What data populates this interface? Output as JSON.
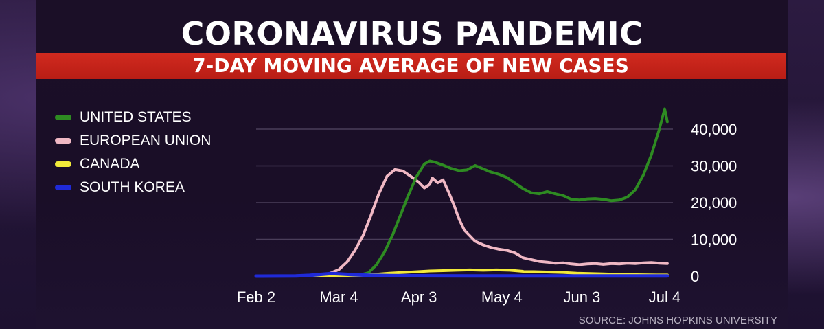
{
  "header": {
    "title": "CORONAVIRUS PANDEMIC",
    "subtitle": "7-DAY MOVING AVERAGE OF NEW CASES"
  },
  "source": "SOURCE: JOHNS HOPKINS UNIVERSITY",
  "colors": {
    "united_states": "#2e8b22",
    "european_union": "#f0b8c4",
    "canada": "#f2ea3a",
    "south_korea": "#1f2ad8",
    "gridline": "#4a3e5a",
    "title_bar": "#c8231a"
  },
  "chart_data": {
    "type": "line",
    "title": "CORONAVIRUS PANDEMIC",
    "subtitle": "7-DAY MOVING AVERAGE OF NEW CASES",
    "xlabel": "",
    "ylabel": "",
    "x_ticks": [
      "Feb 2",
      "Mar 4",
      "Apr 3",
      "May 4",
      "Jun 3",
      "Jul 4"
    ],
    "x_tick_days": [
      0,
      31,
      61,
      92,
      122,
      153
    ],
    "y_ticks": [
      "0",
      "10,000",
      "20,000",
      "30,000",
      "40,000"
    ],
    "ylim": [
      0,
      40000
    ],
    "xlim": [
      0,
      153
    ],
    "grid": true,
    "legend_position": "top-left",
    "y_axis_side": "right",
    "series": [
      {
        "name": "UNITED STATES",
        "color_key": "united_states",
        "points": [
          [
            0,
            0
          ],
          [
            30,
            50
          ],
          [
            38,
            200
          ],
          [
            42,
            900
          ],
          [
            45,
            3000
          ],
          [
            48,
            6500
          ],
          [
            51,
            11000
          ],
          [
            54,
            16500
          ],
          [
            57,
            22000
          ],
          [
            60,
            27000
          ],
          [
            63,
            30500
          ],
          [
            65,
            31300
          ],
          [
            67,
            31000
          ],
          [
            70,
            30200
          ],
          [
            73,
            29300
          ],
          [
            76,
            28700
          ],
          [
            79,
            28900
          ],
          [
            82,
            30100
          ],
          [
            85,
            29200
          ],
          [
            88,
            28300
          ],
          [
            91,
            27700
          ],
          [
            94,
            26800
          ],
          [
            97,
            25300
          ],
          [
            100,
            23800
          ],
          [
            103,
            22700
          ],
          [
            106,
            22400
          ],
          [
            109,
            23000
          ],
          [
            112,
            22400
          ],
          [
            115,
            21900
          ],
          [
            118,
            20900
          ],
          [
            121,
            20700
          ],
          [
            124,
            21000
          ],
          [
            127,
            21100
          ],
          [
            130,
            20900
          ],
          [
            133,
            20500
          ],
          [
            136,
            20700
          ],
          [
            139,
            21500
          ],
          [
            142,
            23500
          ],
          [
            145,
            27500
          ],
          [
            148,
            33000
          ],
          [
            151,
            40000
          ],
          [
            153,
            45500
          ],
          [
            154,
            42000
          ]
        ]
      },
      {
        "name": "EUROPEAN UNION",
        "color_key": "european_union",
        "points": [
          [
            0,
            0
          ],
          [
            22,
            150
          ],
          [
            27,
            600
          ],
          [
            31,
            1800
          ],
          [
            34,
            3800
          ],
          [
            37,
            7000
          ],
          [
            40,
            11000
          ],
          [
            43,
            16500
          ],
          [
            46,
            22500
          ],
          [
            49,
            27200
          ],
          [
            52,
            29000
          ],
          [
            55,
            28600
          ],
          [
            58,
            27100
          ],
          [
            61,
            25500
          ],
          [
            63,
            24000
          ],
          [
            65,
            25000
          ],
          [
            66,
            26700
          ],
          [
            68,
            25400
          ],
          [
            70,
            26200
          ],
          [
            72,
            23000
          ],
          [
            74,
            19500
          ],
          [
            76,
            15500
          ],
          [
            78,
            12500
          ],
          [
            80,
            11000
          ],
          [
            82,
            9500
          ],
          [
            85,
            8500
          ],
          [
            88,
            7800
          ],
          [
            91,
            7300
          ],
          [
            94,
            7000
          ],
          [
            97,
            6300
          ],
          [
            100,
            5000
          ],
          [
            103,
            4500
          ],
          [
            106,
            4000
          ],
          [
            109,
            3800
          ],
          [
            112,
            3500
          ],
          [
            115,
            3600
          ],
          [
            118,
            3300
          ],
          [
            121,
            3100
          ],
          [
            124,
            3300
          ],
          [
            127,
            3400
          ],
          [
            130,
            3200
          ],
          [
            133,
            3400
          ],
          [
            136,
            3300
          ],
          [
            139,
            3500
          ],
          [
            142,
            3400
          ],
          [
            145,
            3600
          ],
          [
            148,
            3700
          ],
          [
            151,
            3500
          ],
          [
            154,
            3400
          ]
        ]
      },
      {
        "name": "CANADA",
        "color_key": "canada",
        "points": [
          [
            0,
            0
          ],
          [
            30,
            50
          ],
          [
            40,
            200
          ],
          [
            45,
            500
          ],
          [
            50,
            800
          ],
          [
            55,
            1000
          ],
          [
            60,
            1200
          ],
          [
            65,
            1400
          ],
          [
            70,
            1500
          ],
          [
            75,
            1600
          ],
          [
            80,
            1700
          ],
          [
            85,
            1600
          ],
          [
            90,
            1700
          ],
          [
            95,
            1600
          ],
          [
            100,
            1300
          ],
          [
            105,
            1200
          ],
          [
            110,
            1100
          ],
          [
            115,
            1000
          ],
          [
            120,
            800
          ],
          [
            125,
            700
          ],
          [
            130,
            600
          ],
          [
            135,
            500
          ],
          [
            140,
            400
          ],
          [
            145,
            350
          ],
          [
            150,
            300
          ],
          [
            154,
            300
          ]
        ]
      },
      {
        "name": "SOUTH KOREA",
        "color_key": "south_korea",
        "points": [
          [
            0,
            0
          ],
          [
            15,
            50
          ],
          [
            20,
            200
          ],
          [
            25,
            500
          ],
          [
            28,
            700
          ],
          [
            31,
            600
          ],
          [
            36,
            400
          ],
          [
            42,
            250
          ],
          [
            50,
            150
          ],
          [
            60,
            100
          ],
          [
            80,
            50
          ],
          [
            100,
            30
          ],
          [
            120,
            40
          ],
          [
            140,
            50
          ],
          [
            154,
            50
          ]
        ]
      }
    ]
  }
}
